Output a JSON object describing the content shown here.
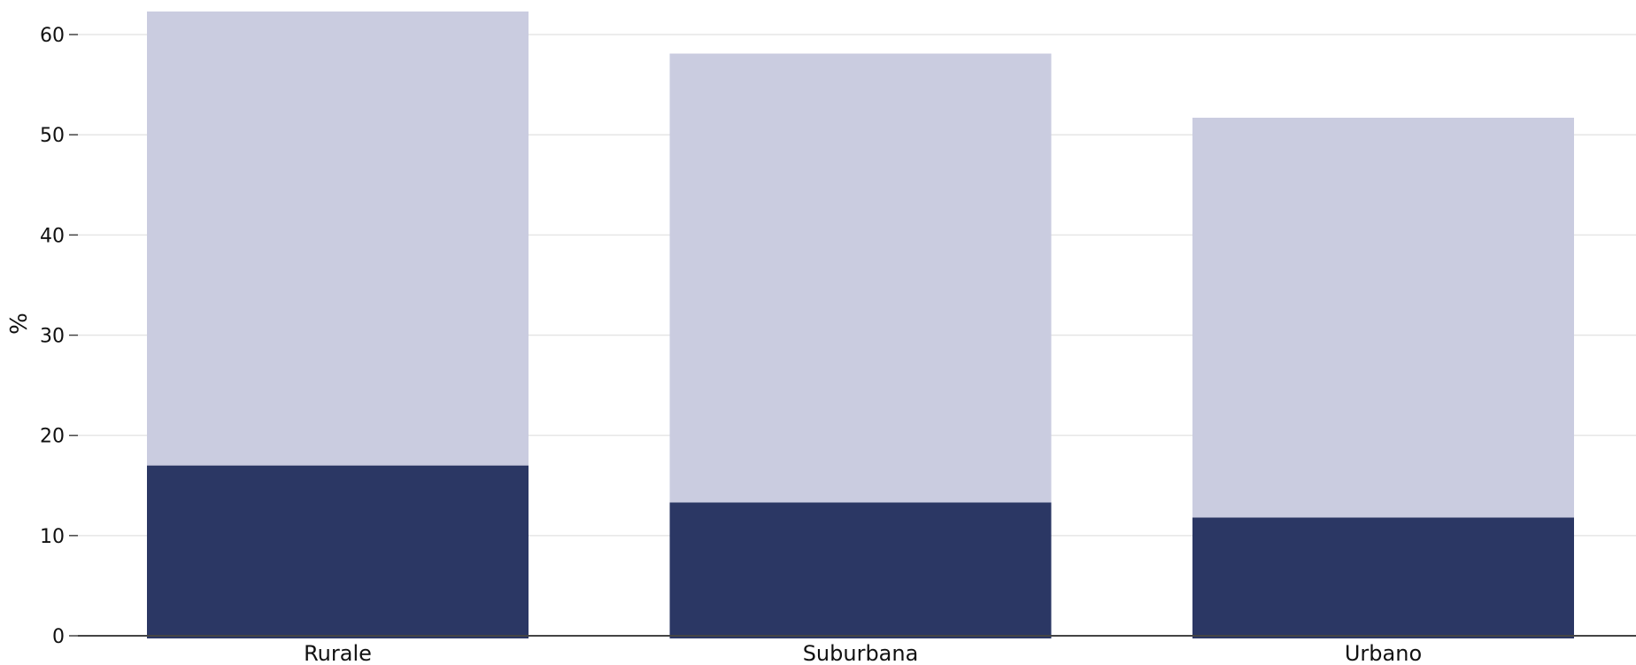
{
  "chart_data": {
    "type": "bar",
    "stacked": true,
    "categories": [
      "Rurale",
      "Suburbana",
      "Urbano"
    ],
    "series": [
      {
        "values": [
          17.0,
          13.3,
          11.8
        ],
        "color": "#2b3764"
      },
      {
        "values": [
          45.3,
          44.8,
          39.9
        ],
        "color": "#cacce0"
      }
    ],
    "totals": [
      62.3,
      58.1,
      51.7
    ],
    "title": "",
    "xlabel": "",
    "ylabel": "%",
    "ylim": [
      0,
      62.3
    ],
    "yticks": [
      0,
      10,
      20,
      30,
      40,
      50,
      60
    ],
    "grid": true,
    "legend": "none"
  }
}
